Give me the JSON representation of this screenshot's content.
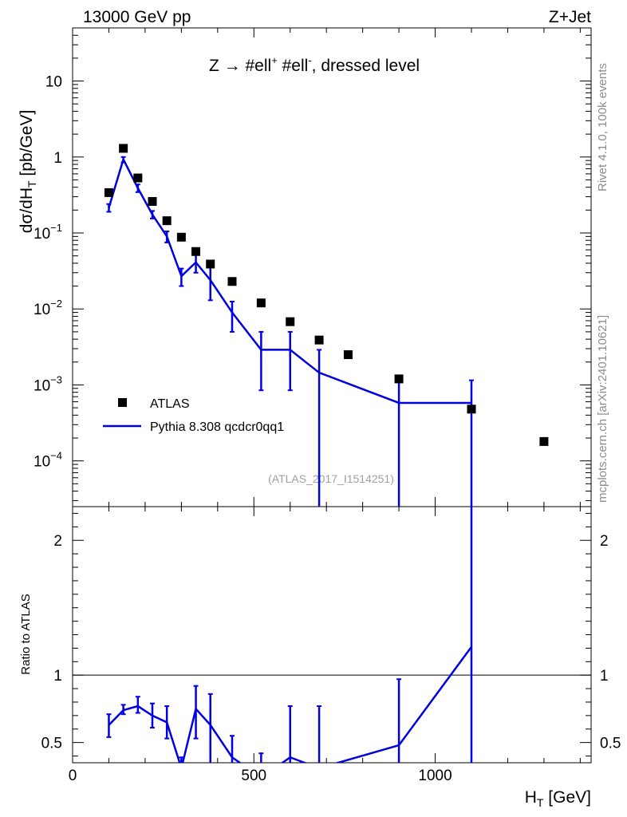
{
  "header": {
    "left": "13000 GeV pp",
    "right": "Z+Jet",
    "process": "Z → #ell",
    "process_sup1": "+",
    "process_mid": " #ell",
    "process_sup2": "-",
    "process_tail": ", dressed level"
  },
  "side": {
    "rivet": "Rivet 4.1.0,  100k events",
    "mcplots": "mcplots.cern.ch [arXiv:2401.10621]"
  },
  "analysis_id": "(ATLAS_2017_I1514251)",
  "chart_data": {
    "type": "scatter",
    "main": {
      "ylabel": "dσ/dH",
      "ylabel_sub": "T",
      "ylabel_unit": " [pb/GeV]",
      "yscale": "log",
      "ylim": [
        2.5e-05,
        50
      ],
      "yticks": [
        {
          "v": 0.0001,
          "base": "10",
          "exp": "−4"
        },
        {
          "v": 0.001,
          "base": "10",
          "exp": "−3"
        },
        {
          "v": 0.01,
          "base": "10",
          "exp": "−2"
        },
        {
          "v": 0.1,
          "base": "10",
          "exp": "−1"
        },
        {
          "v": 1,
          "base": "1",
          "exp": ""
        },
        {
          "v": 10,
          "base": "10",
          "exp": ""
        }
      ]
    },
    "ratio": {
      "ylabel": "Ratio to ATLAS",
      "ylim": [
        0.35,
        2.25
      ],
      "yticks": [
        0.5,
        1,
        2
      ],
      "reference": 1.0
    },
    "xlabel": "H",
    "xlabel_sub": "T",
    "xlabel_unit": " [GeV]",
    "xlim": [
      0,
      1430
    ],
    "xticks": [
      0,
      500,
      1000
    ],
    "series": [
      {
        "name": "ATLAS",
        "style": "marker",
        "color": "#000000",
        "x": [
          100,
          140,
          180,
          220,
          260,
          300,
          340,
          380,
          440,
          520,
          600,
          680,
          760,
          900,
          1100,
          1300
        ],
        "y": [
          0.34,
          1.3,
          0.53,
          0.26,
          0.145,
          0.088,
          0.057,
          0.039,
          0.023,
          0.012,
          0.0068,
          0.0039,
          0.0025,
          0.0012,
          0.00048,
          0.00018
        ]
      },
      {
        "name": "Pythia 8.308 qcdcr0qq1",
        "style": "line",
        "color": "#0000e0",
        "x": [
          100,
          140,
          180,
          220,
          260,
          300,
          340,
          380,
          440,
          520,
          600,
          680,
          900,
          1100
        ],
        "y": [
          0.215,
          0.93,
          0.39,
          0.175,
          0.09,
          0.027,
          0.041,
          0.024,
          0.009,
          0.0029,
          0.0029,
          0.00145,
          0.00058,
          0.00058
        ],
        "err_low": [
          0.19,
          0.85,
          0.345,
          0.155,
          0.075,
          0.02,
          0.03,
          0.013,
          0.005,
          0.00085,
          0.00085,
          1e-05,
          1e-05,
          1e-05
        ],
        "err_high": [
          0.24,
          1.0,
          0.435,
          0.195,
          0.105,
          0.034,
          0.053,
          0.035,
          0.0125,
          0.005,
          0.005,
          0.0029,
          0.00115,
          0.00115
        ],
        "ratio": [
          0.63,
          0.74,
          0.77,
          0.7,
          0.65,
          0.31,
          0.75,
          0.63,
          0.39,
          0.24,
          0.39,
          0.31,
          0.48,
          1.21
        ],
        "ratio_low": [
          0.54,
          0.71,
          0.72,
          0.61,
          0.53,
          0.23,
          0.53,
          0.32,
          0.22,
          0.07,
          0.13,
          0.0,
          0.0,
          0.0
        ],
        "ratio_high": [
          0.71,
          0.78,
          0.84,
          0.79,
          0.77,
          0.39,
          0.92,
          0.86,
          0.55,
          0.42,
          0.77,
          0.77,
          0.97,
          2.43
        ]
      }
    ]
  }
}
